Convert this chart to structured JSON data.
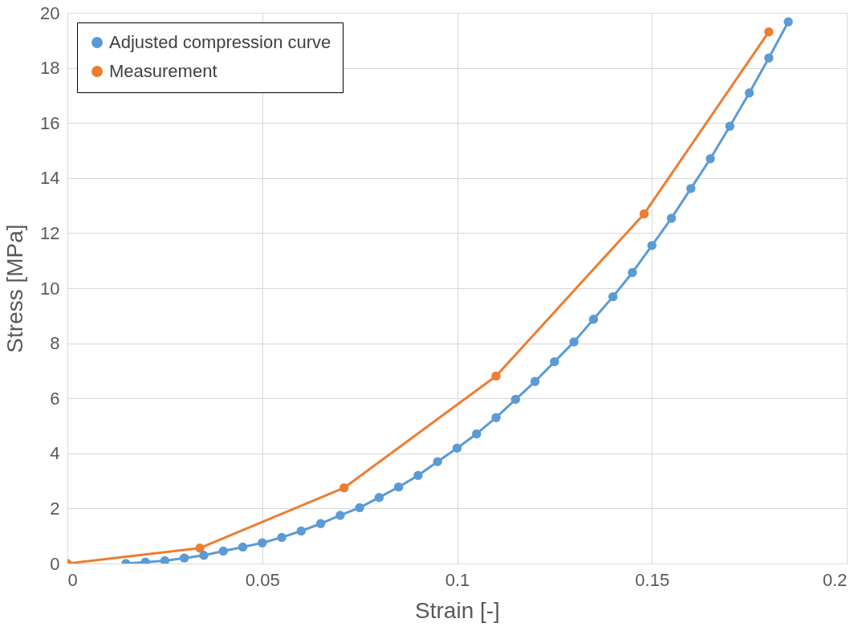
{
  "chart_data": {
    "type": "line",
    "xlabel": "Strain [-]",
    "ylabel": "Stress [MPa]",
    "xlim": [
      0,
      0.2
    ],
    "xticks": [
      0,
      0.05,
      0.1,
      0.15,
      0.2
    ],
    "ylim": [
      0,
      20
    ],
    "yticks": [
      0,
      2,
      4,
      6,
      8,
      10,
      12,
      14,
      16,
      18,
      20
    ],
    "grid": true,
    "legend": "top left",
    "marker": "circle",
    "line_style": "solid",
    "series": [
      {
        "name": "Adjusted compression curve",
        "color": "#5b9bd5",
        "x": [
          0.015,
          0.02,
          0.025,
          0.03,
          0.035,
          0.04,
          0.045,
          0.05,
          0.055,
          0.06,
          0.065,
          0.07,
          0.075,
          0.08,
          0.085,
          0.09,
          0.095,
          0.1,
          0.105,
          0.11,
          0.115,
          0.12,
          0.125,
          0.13,
          0.135,
          0.14,
          0.145,
          0.15,
          0.155,
          0.16,
          0.165,
          0.17,
          0.175,
          0.18,
          0.185
        ],
        "values": [
          0,
          0.05,
          0.1,
          0.2,
          0.3,
          0.45,
          0.6,
          0.75,
          0.95,
          1.18,
          1.45,
          1.75,
          2.03,
          2.4,
          2.78,
          3.2,
          3.7,
          4.19,
          4.71,
          5.3,
          5.96,
          6.61,
          7.33,
          8.05,
          8.87,
          9.69,
          10.57,
          11.55,
          12.54,
          13.62,
          14.7,
          15.88,
          17.09,
          18.36,
          19.67
        ]
      },
      {
        "name": "Measurement",
        "color": "#ed7d31",
        "x": [
          0,
          0.034,
          0.071,
          0.11,
          0.148,
          0.18
        ],
        "values": [
          0,
          0.56,
          2.75,
          6.81,
          12.7,
          19.31
        ]
      }
    ]
  }
}
